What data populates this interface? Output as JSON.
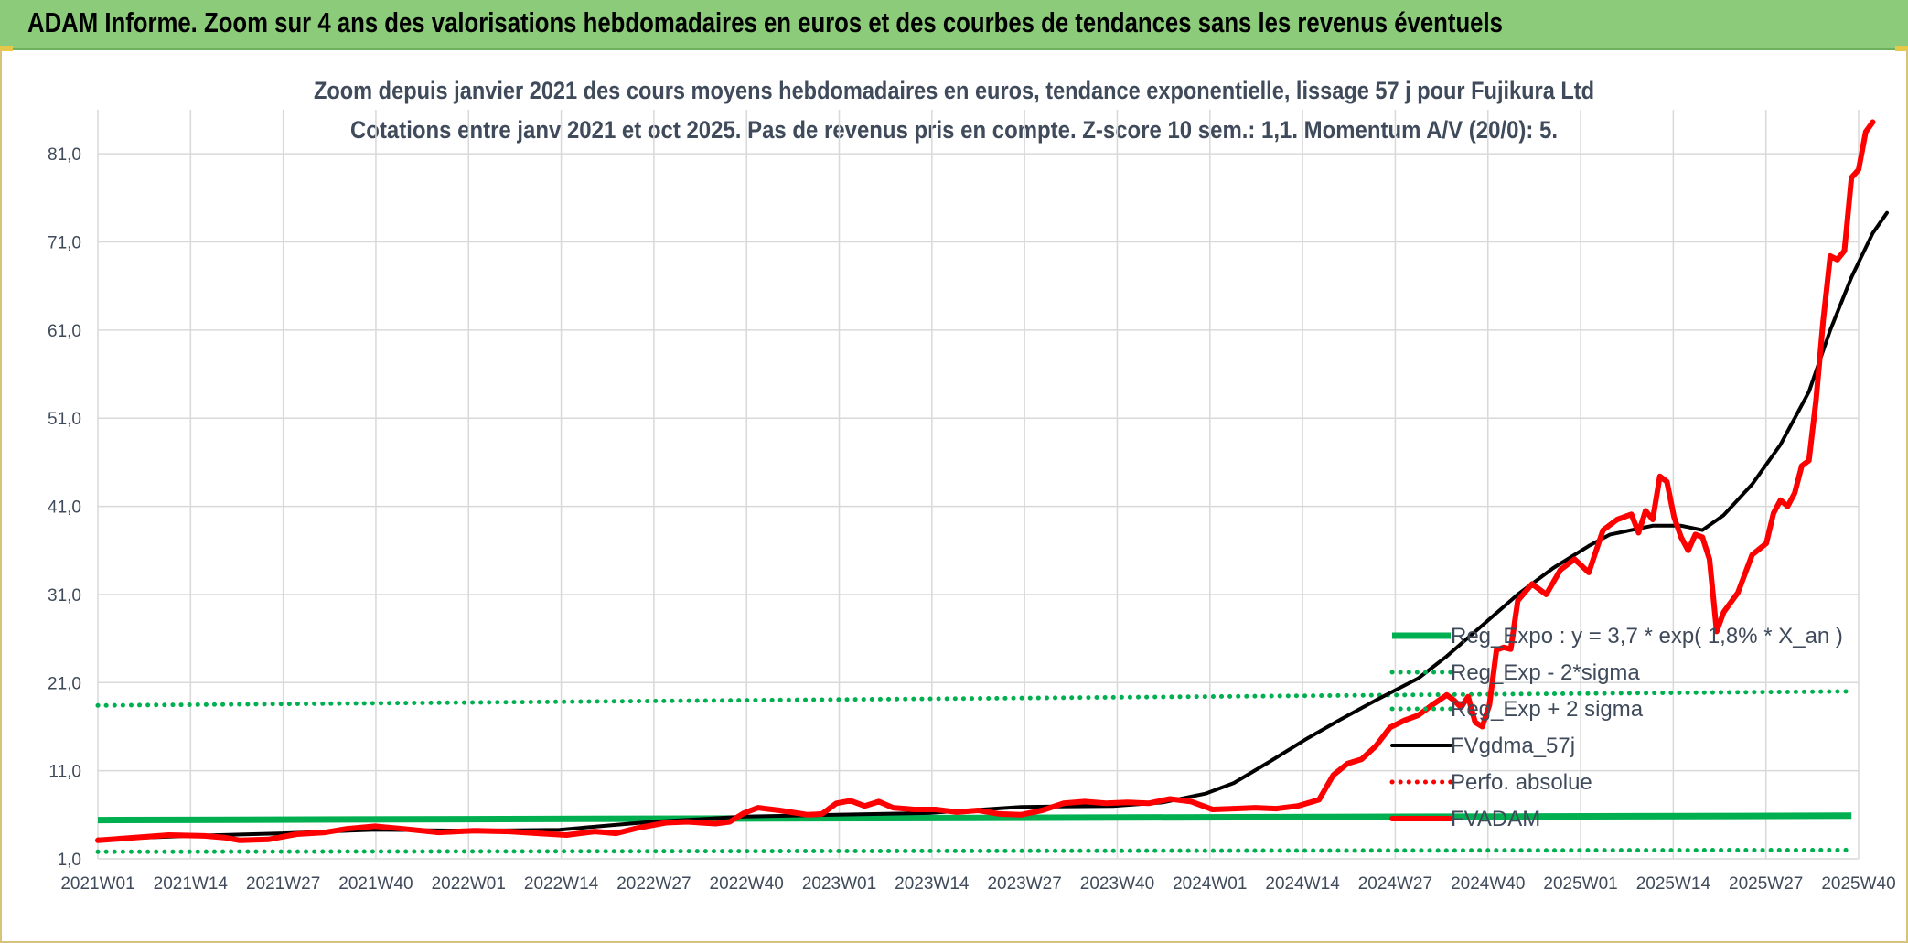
{
  "banner": {
    "title": "ADAM Informe. Zoom sur 4 ans des valorisations hebdomadaires en euros et des courbes de tendances sans les revenus éventuels"
  },
  "chart_data": {
    "type": "line",
    "title_line1": "Zoom depuis janvier 2021 des cours moyens hebdomadaires en euros, tendance exponentielle, lissage 57 j pour Fujikura Ltd",
    "title_line2": "Cotations entre janv 2021 et oct 2025. Pas de revenus pris en compte. Z-score 10 sem.: 1,1. Momentum A/V (20/0): 5.",
    "y_ticks": [
      "1,0",
      "11,0",
      "21,0",
      "31,0",
      "41,0",
      "51,0",
      "61,0",
      "71,0",
      "81,0"
    ],
    "y_tick_values": [
      1,
      11,
      21,
      31,
      41,
      51,
      61,
      71,
      81
    ],
    "ylim": [
      1,
      86
    ],
    "x_ticks": [
      "2021W01",
      "2021W14",
      "2021W27",
      "2021W40",
      "2022W01",
      "2022W14",
      "2022W27",
      "2022W40",
      "2023W01",
      "2023W14",
      "2023W27",
      "2023W40",
      "2024W01",
      "2024W14",
      "2024W27",
      "2024W40",
      "2025W01",
      "2025W14",
      "2025W27",
      "2025W40"
    ],
    "grid": true,
    "legend_position": "lower-right, inside plot",
    "colors": {
      "green": "#00b050",
      "red": "#ff0000",
      "black": "#000000",
      "grid": "#d9d9d9",
      "text": "#3f4a5a"
    },
    "series": [
      {
        "name": "Reg_Expo : y = 3,7 * exp( 1,8% *  X_an )",
        "style": "solid-green",
        "points": [
          [
            0,
            5.4
          ],
          [
            247,
            5.9
          ]
        ]
      },
      {
        "name": "Reg_Exp - 2*sigma",
        "style": "dotted-green",
        "points": [
          [
            0,
            1.8
          ],
          [
            247,
            2.0
          ]
        ]
      },
      {
        "name": "Reg_Exp + 2 sigma",
        "style": "dotted-green",
        "points": [
          [
            0,
            18.4
          ],
          [
            247,
            20.0
          ]
        ]
      },
      {
        "name": "FVgdma_57j",
        "style": "solid-black",
        "points": [
          [
            0,
            3.2
          ],
          [
            13,
            3.6
          ],
          [
            26,
            3.9
          ],
          [
            39,
            4.3
          ],
          [
            52,
            4.2
          ],
          [
            65,
            4.3
          ],
          [
            78,
            5.2
          ],
          [
            91,
            5.8
          ],
          [
            104,
            6.0
          ],
          [
            117,
            6.2
          ],
          [
            130,
            6.9
          ],
          [
            143,
            7.0
          ],
          [
            150,
            7.4
          ],
          [
            156,
            8.4
          ],
          [
            160,
            9.6
          ],
          [
            165,
            12.0
          ],
          [
            170,
            14.5
          ],
          [
            175,
            16.8
          ],
          [
            180,
            19.0
          ],
          [
            186,
            21.5
          ],
          [
            190,
            24.0
          ],
          [
            195,
            27.5
          ],
          [
            200,
            31.0
          ],
          [
            205,
            34.0
          ],
          [
            210,
            36.5
          ],
          [
            213,
            37.8
          ],
          [
            216,
            38.3
          ],
          [
            219,
            38.8
          ],
          [
            223,
            38.8
          ],
          [
            226,
            38.3
          ],
          [
            229,
            40.0
          ],
          [
            233,
            43.5
          ],
          [
            237,
            48.0
          ],
          [
            241,
            54.0
          ],
          [
            244,
            61.0
          ],
          [
            247,
            67.0
          ],
          [
            250,
            72.0
          ],
          [
            252,
            74.3
          ]
        ]
      },
      {
        "name": "Perfo. absolue",
        "style": "dotted-red",
        "points": []
      },
      {
        "name": "FVADAM",
        "style": "solid-red",
        "points": [
          [
            0,
            3.1
          ],
          [
            5,
            3.4
          ],
          [
            10,
            3.7
          ],
          [
            15,
            3.6
          ],
          [
            18,
            3.4
          ],
          [
            20,
            3.1
          ],
          [
            24,
            3.2
          ],
          [
            28,
            3.8
          ],
          [
            32,
            4.0
          ],
          [
            35,
            4.4
          ],
          [
            39,
            4.7
          ],
          [
            43,
            4.4
          ],
          [
            48,
            4.0
          ],
          [
            53,
            4.2
          ],
          [
            58,
            4.1
          ],
          [
            62,
            3.9
          ],
          [
            66,
            3.7
          ],
          [
            70,
            4.1
          ],
          [
            73,
            3.9
          ],
          [
            76,
            4.5
          ],
          [
            80,
            5.1
          ],
          [
            83,
            5.2
          ],
          [
            87,
            5.0
          ],
          [
            89,
            5.2
          ],
          [
            91,
            6.2
          ],
          [
            93,
            6.8
          ],
          [
            96,
            6.5
          ],
          [
            100,
            6.0
          ],
          [
            102,
            6.1
          ],
          [
            104,
            7.3
          ],
          [
            106,
            7.6
          ],
          [
            108,
            7.0
          ],
          [
            110,
            7.5
          ],
          [
            112,
            6.8
          ],
          [
            115,
            6.6
          ],
          [
            118,
            6.6
          ],
          [
            121,
            6.3
          ],
          [
            124,
            6.5
          ],
          [
            127,
            6.1
          ],
          [
            130,
            6.0
          ],
          [
            133,
            6.5
          ],
          [
            136,
            7.3
          ],
          [
            139,
            7.5
          ],
          [
            142,
            7.3
          ],
          [
            145,
            7.4
          ],
          [
            148,
            7.3
          ],
          [
            151,
            7.8
          ],
          [
            154,
            7.5
          ],
          [
            157,
            6.6
          ],
          [
            160,
            6.7
          ],
          [
            163,
            6.8
          ],
          [
            166,
            6.7
          ],
          [
            169,
            7.0
          ],
          [
            172,
            7.7
          ],
          [
            174,
            10.5
          ],
          [
            176,
            11.8
          ],
          [
            178,
            12.3
          ],
          [
            180,
            13.8
          ],
          [
            182,
            15.9
          ],
          [
            184,
            16.7
          ],
          [
            186,
            17.3
          ],
          [
            188,
            18.5
          ],
          [
            190,
            19.6
          ],
          [
            191,
            19.0
          ],
          [
            192,
            18.2
          ],
          [
            193,
            19.4
          ],
          [
            194,
            16.5
          ],
          [
            195,
            16.0
          ],
          [
            196,
            18.5
          ],
          [
            197,
            24.7
          ],
          [
            198,
            25.0
          ],
          [
            199,
            24.8
          ],
          [
            200,
            30.3
          ],
          [
            202,
            32.2
          ],
          [
            204,
            31.0
          ],
          [
            206,
            33.8
          ],
          [
            208,
            35.0
          ],
          [
            210,
            33.5
          ],
          [
            212,
            38.3
          ],
          [
            214,
            39.5
          ],
          [
            216,
            40.1
          ],
          [
            217,
            38.0
          ],
          [
            218,
            40.5
          ],
          [
            219,
            39.5
          ],
          [
            220,
            44.4
          ],
          [
            221,
            43.8
          ],
          [
            222,
            39.8
          ],
          [
            223,
            37.5
          ],
          [
            224,
            36.0
          ],
          [
            225,
            37.8
          ],
          [
            226,
            37.5
          ],
          [
            227,
            35.0
          ],
          [
            228,
            26.8
          ],
          [
            229,
            29.0
          ],
          [
            231,
            31.2
          ],
          [
            233,
            35.5
          ],
          [
            235,
            36.8
          ],
          [
            236,
            40.2
          ],
          [
            237,
            41.7
          ],
          [
            238,
            41.0
          ],
          [
            239,
            42.5
          ],
          [
            240,
            45.6
          ],
          [
            241,
            46.2
          ],
          [
            242,
            53.0
          ],
          [
            243,
            62.0
          ],
          [
            244,
            69.4
          ],
          [
            245,
            69.0
          ],
          [
            246,
            70.0
          ],
          [
            247,
            78.3
          ],
          [
            248,
            79.2
          ],
          [
            249,
            83.5
          ],
          [
            250,
            84.6
          ]
        ]
      }
    ]
  }
}
